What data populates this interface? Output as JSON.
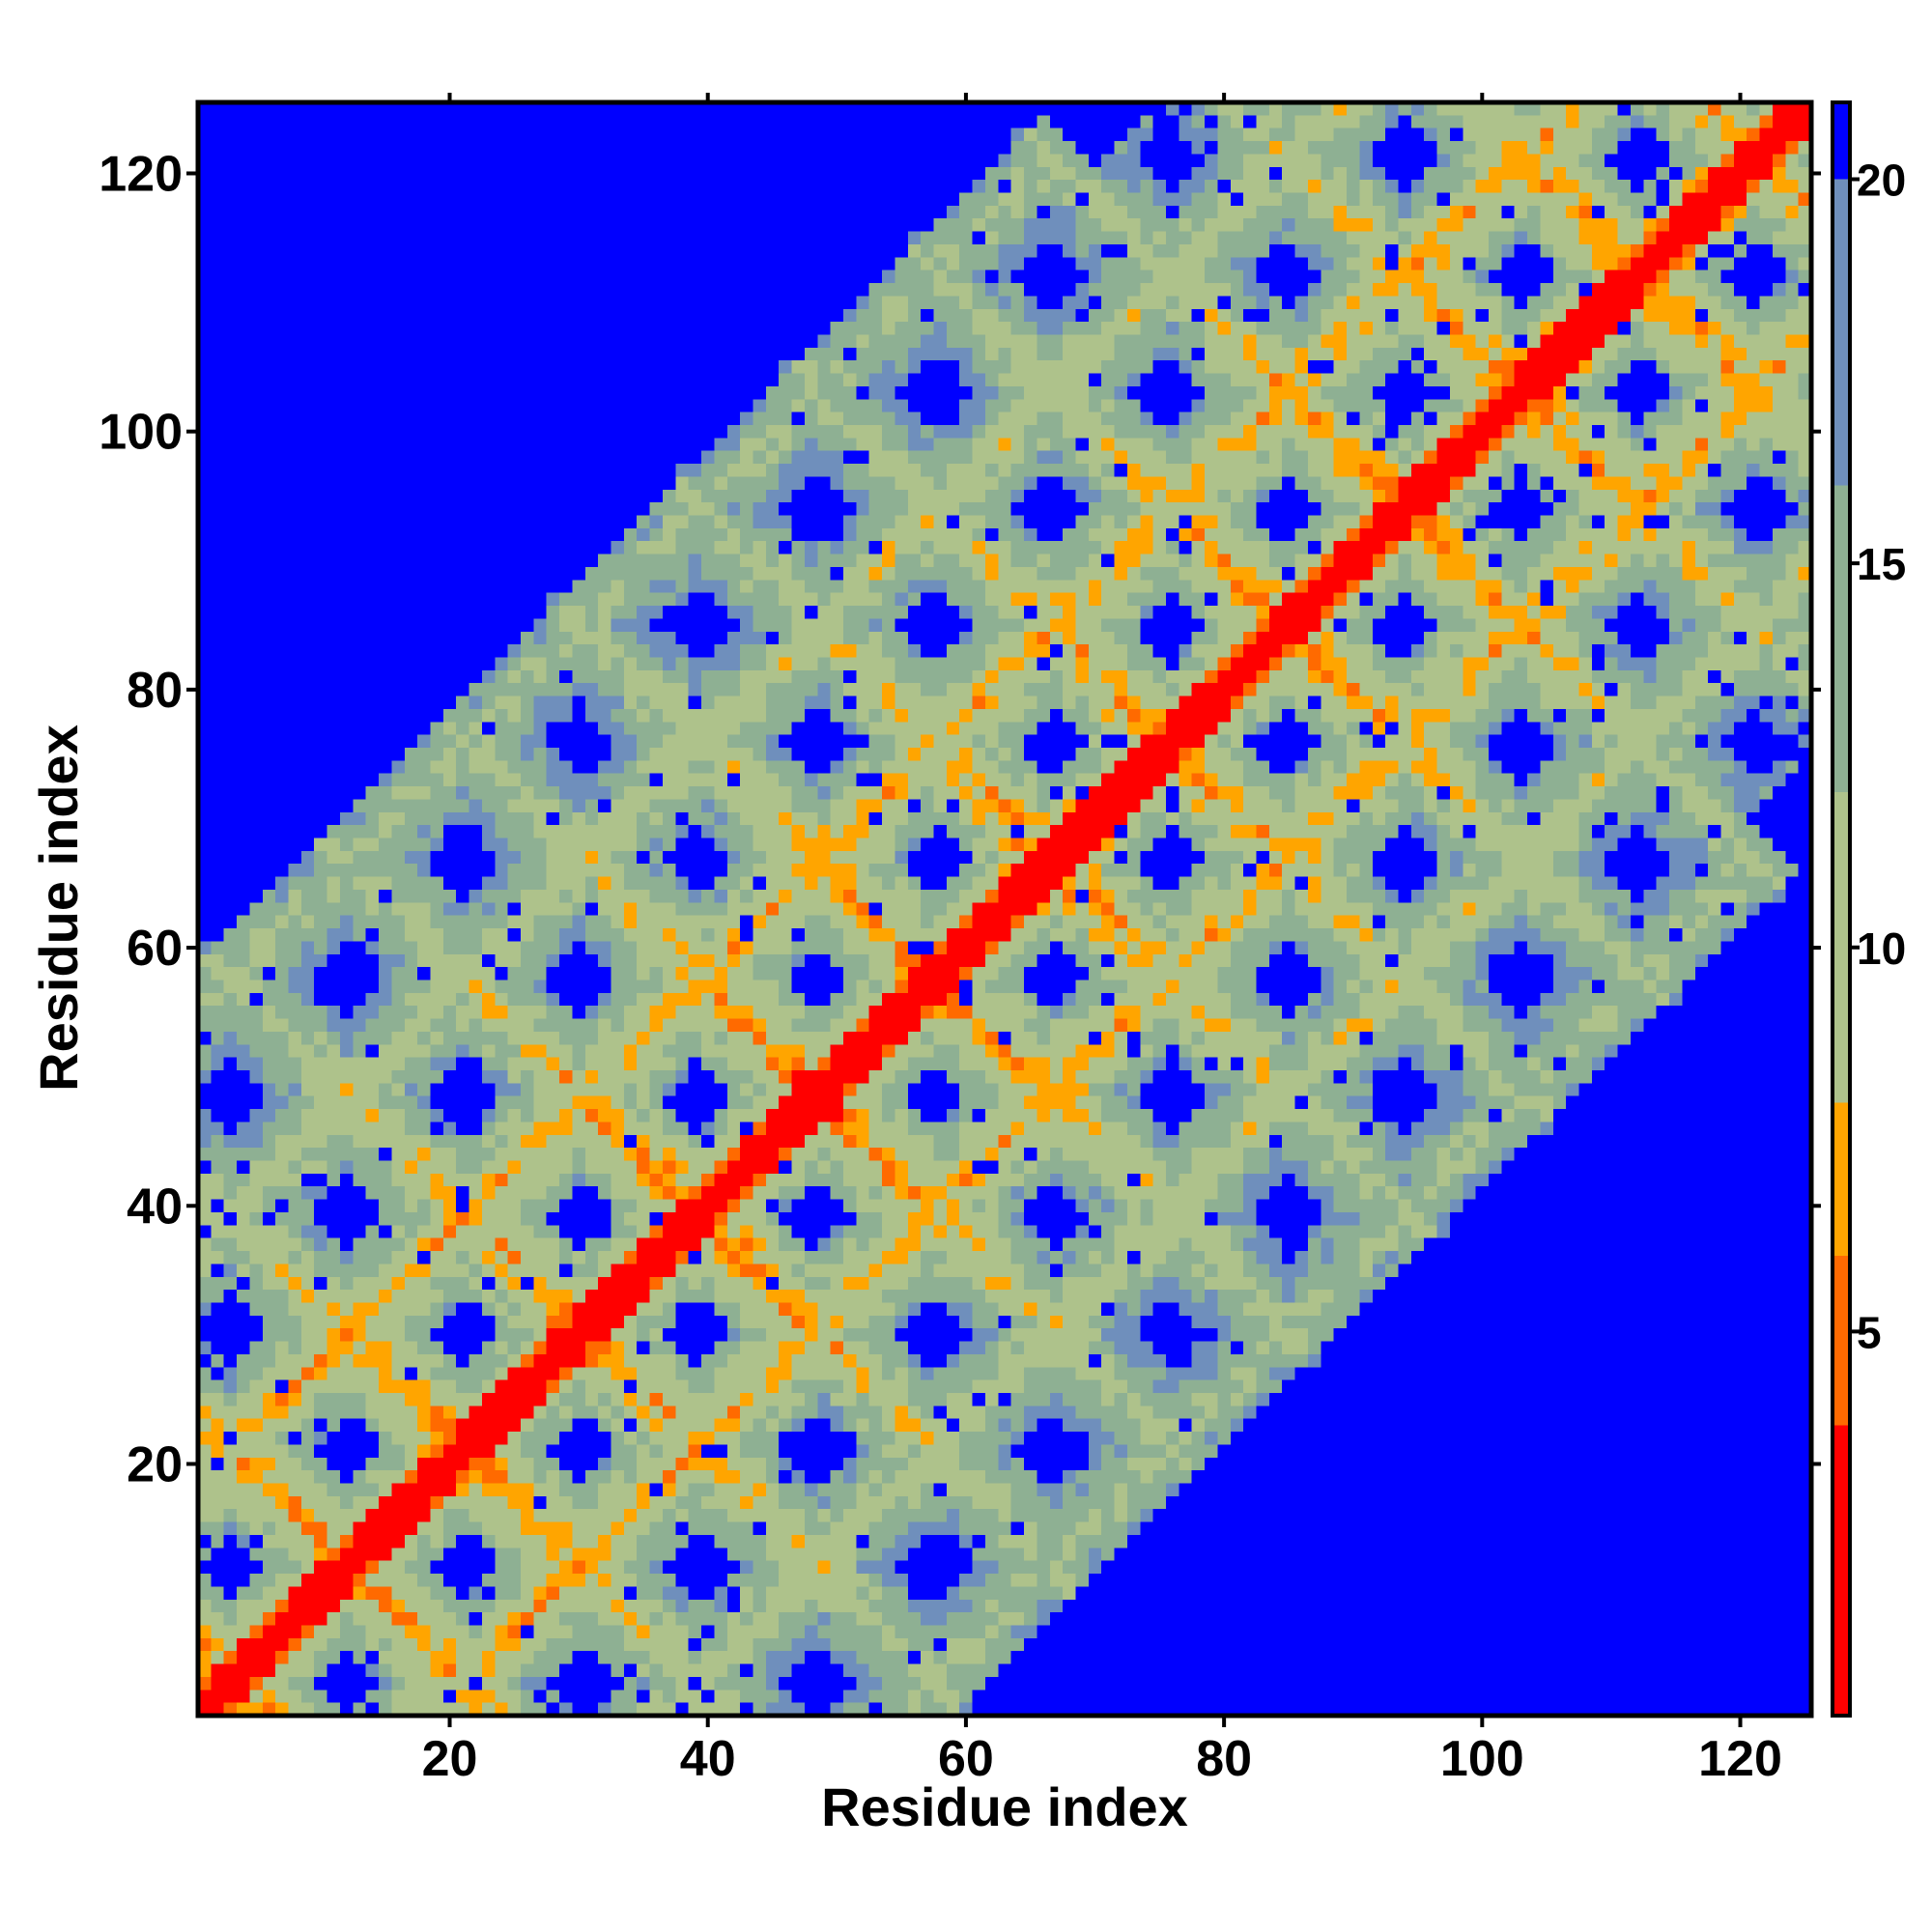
{
  "chart_data": {
    "type": "heatmap",
    "title": "",
    "xlabel": "Residue index",
    "ylabel": "Residue index",
    "n_residues": 125,
    "xlim": [
      1,
      125
    ],
    "ylim": [
      1,
      125
    ],
    "x_ticks": [
      20,
      40,
      60,
      80,
      100,
      120
    ],
    "y_ticks": [
      20,
      40,
      60,
      80,
      100,
      120
    ],
    "x_tick_labels": [
      "20",
      "40",
      "60",
      "80",
      "100",
      "120"
    ],
    "y_tick_labels": [
      "20",
      "40",
      "60",
      "80",
      "100",
      "120"
    ],
    "colorbar": {
      "ticks": [
        5,
        10,
        15,
        20
      ],
      "tick_labels": [
        "5",
        "10",
        "15",
        "20"
      ],
      "range": [
        0,
        21
      ],
      "placement": "right",
      "bands": [
        {
          "max": 3.8,
          "color": "#ff0000"
        },
        {
          "max": 6.0,
          "color": "#ff6a00"
        },
        {
          "max": 8.0,
          "color": "#ffa500"
        },
        {
          "max": 12.0,
          "color": "#aec28b"
        },
        {
          "max": 16.0,
          "color": "#8eb093"
        },
        {
          "max": 20.0,
          "color": "#6f8fbc"
        },
        {
          "max": 999,
          "color": "#0000ff"
        }
      ]
    },
    "description_values": "pairwise distance map between residues; diagonal near 0, off-diagonal contacts forming checkered motif, far regions saturated (>20)",
    "grid": false
  }
}
